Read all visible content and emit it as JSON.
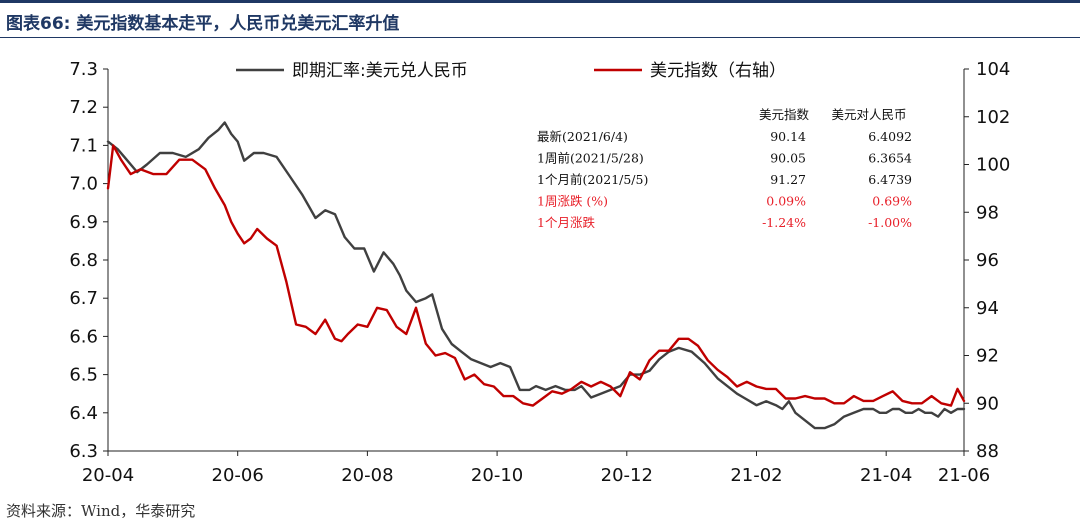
{
  "header": {
    "title": "图表66:  美元指数基本走平，人民币兑美元汇率升值"
  },
  "footer": {
    "source": "资料来源：Wind，华泰研究"
  },
  "chart_data": {
    "type": "line",
    "title": "美元指数基本走平，人民币兑美元汇率升值",
    "x_tick_labels": [
      "20-04",
      "20-06",
      "20-08",
      "20-10",
      "20-12",
      "21-02",
      "21-04",
      "21-06"
    ],
    "y_left": {
      "min": 6.3,
      "max": 7.3,
      "ticks": [
        "6.3",
        "6.4",
        "6.5",
        "6.6",
        "6.7",
        "6.8",
        "6.9",
        "7.0",
        "7.1",
        "7.2",
        "7.3"
      ]
    },
    "y_right": {
      "min": 88,
      "max": 104,
      "ticks": [
        "88",
        "90",
        "92",
        "94",
        "96",
        "98",
        "100",
        "102",
        "104"
      ]
    },
    "series": [
      {
        "name": "即期汇率:美元兑人民币",
        "axis": "left",
        "color": "#404040",
        "x_months": [
          0,
          0.15,
          0.3,
          0.45,
          0.6,
          0.8,
          1.0,
          1.2,
          1.4,
          1.55,
          1.7,
          1.8,
          1.9,
          2.0,
          2.1,
          2.25,
          2.4,
          2.6,
          2.8,
          3.0,
          3.1,
          3.2,
          3.35,
          3.5,
          3.65,
          3.8,
          3.95,
          4.1,
          4.25,
          4.4,
          4.5,
          4.6,
          4.75,
          4.9,
          5.0,
          5.15,
          5.3,
          5.45,
          5.6,
          5.75,
          5.9,
          6.05,
          6.2,
          6.35,
          6.5,
          6.6,
          6.75,
          6.9,
          7.05,
          7.2,
          7.3,
          7.45,
          7.6,
          7.75,
          7.9,
          8.05,
          8.2,
          8.35,
          8.5,
          8.65,
          8.8,
          9.0,
          9.2,
          9.4,
          9.55,
          9.7,
          9.8,
          9.9,
          10.0,
          10.15,
          10.3,
          10.4,
          10.5,
          10.6,
          10.75,
          10.9,
          11.05,
          11.2,
          11.35,
          11.5,
          11.65,
          11.8,
          11.9,
          12.0,
          12.1,
          12.2,
          12.3,
          12.4,
          12.5,
          12.6,
          12.7,
          12.8,
          12.9,
          13.0,
          13.1,
          13.2
        ],
        "values": [
          7.11,
          7.09,
          7.06,
          7.03,
          7.05,
          7.08,
          7.08,
          7.07,
          7.09,
          7.12,
          7.14,
          7.16,
          7.13,
          7.11,
          7.06,
          7.08,
          7.08,
          7.07,
          7.02,
          6.97,
          6.94,
          6.91,
          6.93,
          6.92,
          6.86,
          6.83,
          6.83,
          6.77,
          6.82,
          6.79,
          6.76,
          6.72,
          6.69,
          6.7,
          6.71,
          6.62,
          6.58,
          6.56,
          6.54,
          6.53,
          6.52,
          6.53,
          6.52,
          6.46,
          6.46,
          6.47,
          6.46,
          6.47,
          6.46,
          6.46,
          6.47,
          6.44,
          6.45,
          6.46,
          6.47,
          6.5,
          6.5,
          6.51,
          6.54,
          6.56,
          6.57,
          6.56,
          6.53,
          6.49,
          6.47,
          6.45,
          6.44,
          6.43,
          6.42,
          6.43,
          6.42,
          6.41,
          6.43,
          6.4,
          6.38,
          6.36,
          6.36,
          6.37,
          6.39,
          6.4,
          6.41,
          6.41,
          6.4,
          6.4,
          6.41,
          6.41,
          6.4,
          6.4,
          6.41,
          6.4,
          6.4,
          6.39,
          6.41,
          6.4,
          6.41,
          6.41
        ]
      },
      {
        "name": "美元指数（右轴）",
        "axis": "right",
        "color": "#c00000",
        "x_months": [
          0,
          0.08,
          0.2,
          0.35,
          0.5,
          0.7,
          0.9,
          1.1,
          1.3,
          1.5,
          1.65,
          1.8,
          1.9,
          2.0,
          2.1,
          2.2,
          2.3,
          2.45,
          2.6,
          2.75,
          2.9,
          3.05,
          3.2,
          3.35,
          3.5,
          3.6,
          3.7,
          3.85,
          4.0,
          4.15,
          4.3,
          4.45,
          4.6,
          4.75,
          4.9,
          5.05,
          5.2,
          5.35,
          5.5,
          5.65,
          5.8,
          5.95,
          6.1,
          6.25,
          6.4,
          6.55,
          6.7,
          6.85,
          7.0,
          7.15,
          7.3,
          7.45,
          7.6,
          7.75,
          7.9,
          8.05,
          8.2,
          8.35,
          8.5,
          8.65,
          8.8,
          8.95,
          9.1,
          9.25,
          9.4,
          9.55,
          9.7,
          9.85,
          10.0,
          10.15,
          10.3,
          10.45,
          10.6,
          10.75,
          10.9,
          11.05,
          11.2,
          11.35,
          11.5,
          11.65,
          11.8,
          11.95,
          12.1,
          12.25,
          12.4,
          12.55,
          12.7,
          12.85,
          13.0,
          13.1,
          13.2
        ],
        "values": [
          99.0,
          100.8,
          100.2,
          99.6,
          99.8,
          99.6,
          99.6,
          100.2,
          100.2,
          99.8,
          99.0,
          98.3,
          97.6,
          97.1,
          96.7,
          96.9,
          97.3,
          96.9,
          96.6,
          95.1,
          93.3,
          93.2,
          92.9,
          93.5,
          92.7,
          92.6,
          92.9,
          93.3,
          93.2,
          94.0,
          93.9,
          93.2,
          92.9,
          94.0,
          92.5,
          92.0,
          92.1,
          91.9,
          91.0,
          91.2,
          90.8,
          90.7,
          90.3,
          90.3,
          90.0,
          89.9,
          90.2,
          90.5,
          90.4,
          90.6,
          90.9,
          90.7,
          90.9,
          90.7,
          90.3,
          91.3,
          91.0,
          91.8,
          92.2,
          92.2,
          92.7,
          92.7,
          92.4,
          91.8,
          91.4,
          91.1,
          90.7,
          90.9,
          90.7,
          90.6,
          90.6,
          90.2,
          90.2,
          90.3,
          90.2,
          90.2,
          90.0,
          90.0,
          90.3,
          90.1,
          90.1,
          90.3,
          90.5,
          90.1,
          90.0,
          90.0,
          90.3,
          90.0,
          89.9,
          90.6,
          90.1
        ]
      }
    ],
    "legend": {
      "position": "top",
      "entries": [
        "即期汇率:美元兑人民币",
        "美元指数（右轴）"
      ]
    },
    "table": {
      "headers": [
        "",
        "美元指数",
        "美元对人民币"
      ],
      "rows": [
        {
          "label": "最新(2021/6/4)",
          "usd_index": "90.14",
          "usd_cny": "6.4092",
          "highlight": false
        },
        {
          "label": "1周前(2021/5/28)",
          "usd_index": "90.05",
          "usd_cny": "6.3654",
          "highlight": false
        },
        {
          "label": "1个月前(2021/5/5)",
          "usd_index": "91.27",
          "usd_cny": "6.4739",
          "highlight": false
        },
        {
          "label": "1周涨跌 (%)",
          "usd_index": "0.09%",
          "usd_cny": "0.69%",
          "highlight": true
        },
        {
          "label": "1个月涨跌",
          "usd_index": "-1.24%",
          "usd_cny": "-1.00%",
          "highlight": true
        }
      ]
    }
  }
}
